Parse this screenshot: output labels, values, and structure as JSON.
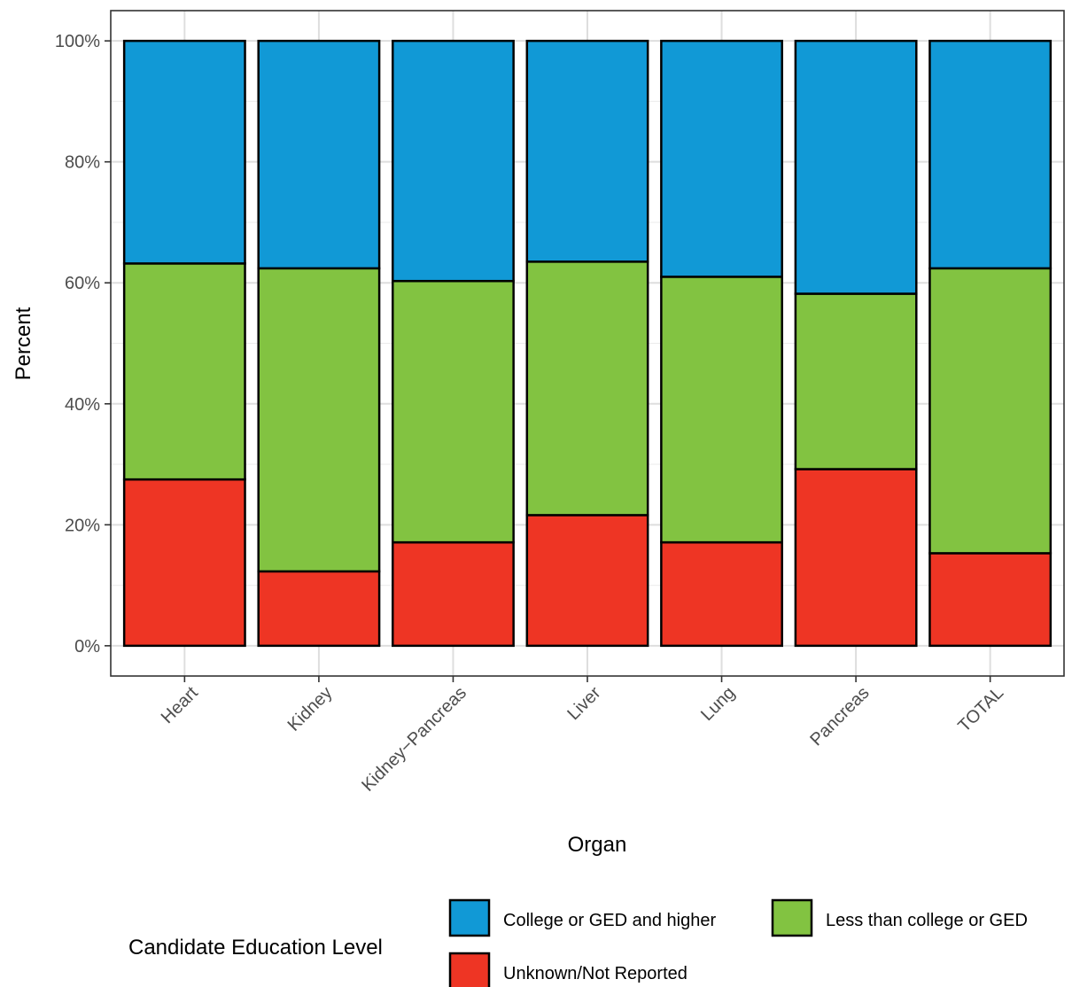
{
  "chart_data": {
    "type": "bar",
    "stacked": true,
    "categories": [
      "Heart",
      "Kidney",
      "Kidney−Pancreas",
      "Liver",
      "Lung",
      "Pancreas",
      "TOTAL"
    ],
    "series": [
      {
        "name": "Unknown/Not Reported",
        "color": "#ee3524",
        "values": [
          27.5,
          12.3,
          17.1,
          21.6,
          17.1,
          29.2,
          15.3
        ]
      },
      {
        "name": "Less than college or GED",
        "color": "#82c341",
        "values": [
          35.7,
          50.1,
          43.2,
          41.9,
          43.9,
          29.0,
          47.1
        ]
      },
      {
        "name": "College or GED and higher",
        "color": "#1199d6",
        "values": [
          36.8,
          37.6,
          39.7,
          36.5,
          39.0,
          41.8,
          37.6
        ]
      }
    ],
    "xlabel": "Organ",
    "ylabel": "Percent",
    "ylim": [
      -5,
      105
    ],
    "yticks": [
      0,
      20,
      40,
      60,
      80,
      100
    ],
    "ytick_labels": [
      "0%",
      "20%",
      "40%",
      "60%",
      "80%",
      "100%"
    ],
    "grid": true,
    "legend": {
      "title": "Candidate Education Level",
      "position": "bottom",
      "items": [
        "College or GED and higher",
        "Less than college or GED",
        "Unknown/Not Reported"
      ]
    }
  }
}
